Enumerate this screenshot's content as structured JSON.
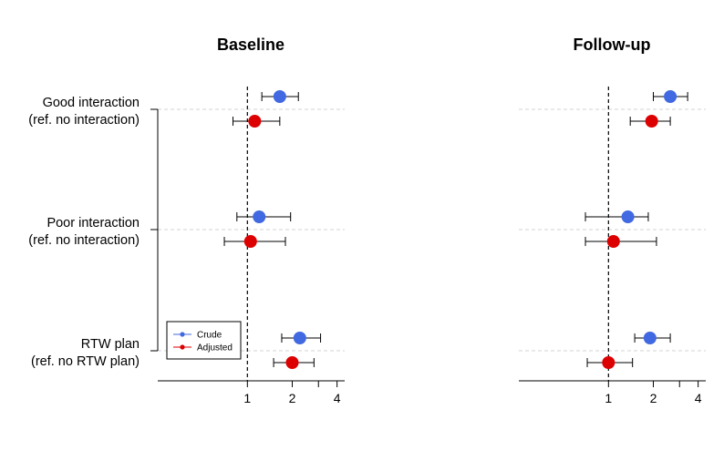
{
  "chart_data": [
    {
      "type": "forest",
      "title": "Baseline",
      "x_scale": "log2",
      "xlim": [
        0.25,
        4.5
      ],
      "x_ticks": [
        "1",
        "2",
        "4"
      ],
      "reference_line": 1,
      "rows": [
        {
          "label_line1": "Good interaction",
          "label_line2": "(ref. no interaction)",
          "crude": {
            "estimate": 1.65,
            "lower": 1.25,
            "upper": 2.2
          },
          "adjusted": {
            "estimate": 1.12,
            "lower": 0.8,
            "upper": 1.65
          }
        },
        {
          "label_line1": "Poor interaction",
          "label_line2": "(ref. no interaction)",
          "crude": {
            "estimate": 1.2,
            "lower": 0.85,
            "upper": 1.95
          },
          "adjusted": {
            "estimate": 1.05,
            "lower": 0.7,
            "upper": 1.8
          }
        },
        {
          "label_line1": "RTW plan",
          "label_line2": "(ref. no RTW plan)",
          "crude": {
            "estimate": 2.25,
            "lower": 1.7,
            "upper": 3.1
          },
          "adjusted": {
            "estimate": 2.0,
            "lower": 1.5,
            "upper": 2.8
          }
        }
      ],
      "legend": [
        {
          "label": "Crude",
          "color": "#4169E1"
        },
        {
          "label": "Adjusted",
          "color": "#DD0000"
        }
      ],
      "legend_position": "bottom-left"
    },
    {
      "type": "forest",
      "title": "Follow-up",
      "x_scale": "log2",
      "xlim": [
        0.25,
        4.5
      ],
      "x_ticks": [
        "1",
        "2",
        "4"
      ],
      "reference_line": 1,
      "rows": [
        {
          "crude": {
            "estimate": 2.6,
            "lower": 2.0,
            "upper": 3.4
          },
          "adjusted": {
            "estimate": 1.95,
            "lower": 1.4,
            "upper": 2.6
          }
        },
        {
          "crude": {
            "estimate": 1.35,
            "lower": 0.7,
            "upper": 1.85
          },
          "adjusted": {
            "estimate": 1.08,
            "lower": 0.7,
            "upper": 2.1
          }
        },
        {
          "crude": {
            "estimate": 1.9,
            "lower": 1.5,
            "upper": 2.6
          },
          "adjusted": {
            "estimate": 1.0,
            "lower": 0.72,
            "upper": 1.45
          }
        }
      ]
    }
  ]
}
